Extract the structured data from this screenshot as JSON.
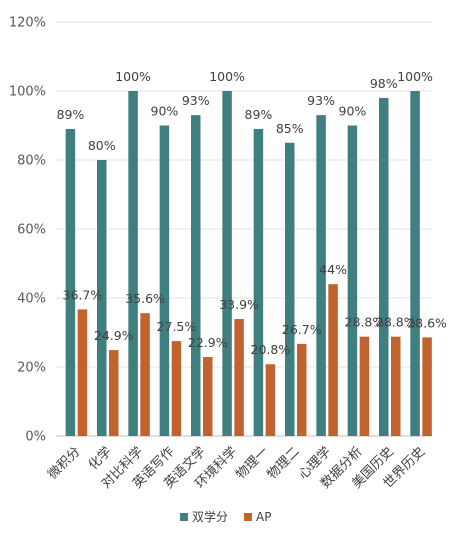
{
  "chart_data": {
    "type": "bar",
    "categories": [
      "微积分",
      "化学",
      "对比科学",
      "英语写作",
      "英语文学",
      "环境科学",
      "物理一",
      "物理二",
      "心理学",
      "数据分析",
      "美国历史",
      "世界历史"
    ],
    "series": [
      {
        "name": "双学分",
        "color": "#3f7f7f",
        "values": [
          89,
          80,
          100,
          90,
          93,
          100,
          89,
          85,
          93,
          90,
          98,
          100
        ],
        "labels": [
          "89%",
          "80%",
          "100%",
          "90%",
          "93%",
          "100%",
          "89%",
          "85%",
          "93%",
          "90%",
          "98%",
          "100%"
        ]
      },
      {
        "name": "AP",
        "color": "#c0632f",
        "values": [
          36.7,
          24.9,
          35.6,
          27.5,
          22.9,
          33.9,
          20.8,
          26.7,
          44,
          28.8,
          28.8,
          28.6
        ],
        "labels": [
          "36.7%",
          "24.9%",
          "35.6%",
          "27.5%",
          "22.9%",
          "33.9%",
          "20.8%",
          "26.7%",
          "44%",
          "28.8%",
          "28.8%",
          "28.6%"
        ]
      }
    ],
    "yticks": [
      "0%",
      "20%",
      "40%",
      "60%",
      "80%",
      "100%",
      "120%"
    ],
    "ylim": [
      0,
      120
    ],
    "grid": true,
    "legend_position": "bottom",
    "title": "",
    "xlabel": "",
    "ylabel": ""
  }
}
